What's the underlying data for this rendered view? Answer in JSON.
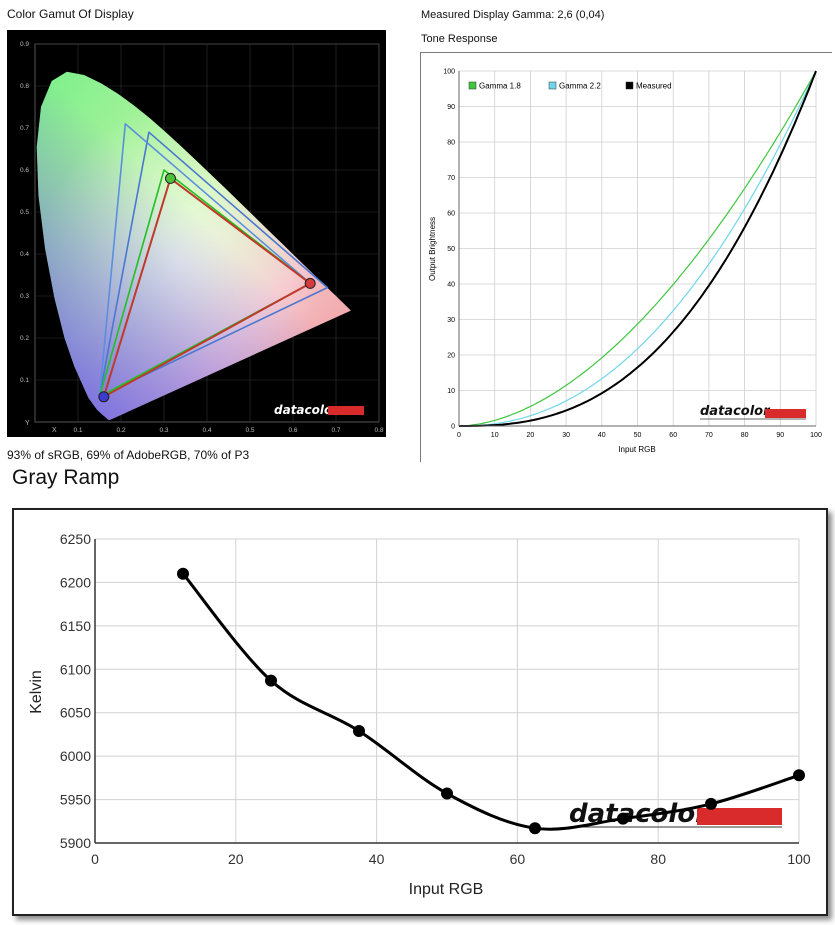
{
  "gamut": {
    "title": "Color Gamut Of Display",
    "caption": "93% of sRGB, 69% of AdobeRGB, 70% of P3",
    "x_axis_label": "X",
    "y_axis_label": "Y",
    "x_ticks": [
      "0.1",
      "0.2",
      "0.3",
      "0.4",
      "0.5",
      "0.6",
      "0.7",
      "0.8"
    ],
    "y_ticks": [
      "0.1",
      "0.2",
      "0.3",
      "0.4",
      "0.5",
      "0.6",
      "0.7",
      "0.8",
      "0.9"
    ],
    "logo": "datacolor"
  },
  "tone": {
    "header": "Measured Display Gamma: 2,6 (0,04)",
    "title": "Tone Response",
    "logo": "datacolor"
  },
  "ramp": {
    "title": "Gray Ramp",
    "logo": "datacolor"
  },
  "chart_data": [
    {
      "type": "scatter",
      "title": "Color Gamut Of Display",
      "xlabel": "X",
      "ylabel": "Y",
      "xlim": [
        0,
        0.8
      ],
      "ylim": [
        0,
        0.9
      ],
      "series": [
        {
          "color": "#c0392b",
          "points": [
            [
              0.64,
              0.33
            ],
            [
              0.315,
              0.58
            ],
            [
              0.16,
              0.06
            ]
          ]
        },
        {
          "color": "#22c022",
          "points": [
            [
              0.64,
              0.33
            ],
            [
              0.3,
              0.6
            ],
            [
              0.15,
              0.06
            ]
          ]
        },
        {
          "color": "#5a8fe0",
          "points": [
            [
              0.64,
              0.33
            ],
            [
              0.21,
              0.71
            ],
            [
              0.15,
              0.06
            ]
          ]
        },
        {
          "color": "#4a78d0",
          "points": [
            [
              0.68,
              0.32
            ],
            [
              0.265,
              0.69
            ],
            [
              0.15,
              0.06
            ]
          ]
        }
      ]
    },
    {
      "type": "line",
      "title": "Tone Response",
      "xlabel": "Input RGB",
      "ylabel": "Output Brightness",
      "xlim": [
        0,
        100
      ],
      "ylim": [
        0,
        100
      ],
      "x_ticks": [
        0,
        10,
        20,
        30,
        40,
        50,
        60,
        70,
        80,
        90,
        100
      ],
      "y_ticks": [
        0,
        10,
        20,
        30,
        40,
        50,
        60,
        70,
        80,
        90,
        100
      ],
      "legend_position": "top-left",
      "series": [
        {
          "name": "Gamma 1.8",
          "color": "#3fc63f",
          "gamma": 1.8
        },
        {
          "name": "Gamma 2.2",
          "color": "#6fd6ea",
          "gamma": 2.2
        },
        {
          "name": "Measured",
          "color": "#000000",
          "gamma": 2.6
        }
      ]
    },
    {
      "type": "line",
      "title": "Gray Ramp",
      "xlabel": "Input RGB",
      "ylabel": "Kelvin",
      "xlim": [
        0,
        100
      ],
      "ylim": [
        5900,
        6250
      ],
      "x_ticks": [
        0,
        20,
        40,
        60,
        80,
        100
      ],
      "y_ticks": [
        5900,
        5950,
        6000,
        6050,
        6100,
        6150,
        6200,
        6250
      ],
      "x": [
        12.5,
        25,
        37.5,
        50,
        62.5,
        75,
        87.5,
        100
      ],
      "values": [
        6210,
        6087,
        6029,
        5957,
        5917,
        5928,
        5945,
        5978
      ]
    }
  ]
}
